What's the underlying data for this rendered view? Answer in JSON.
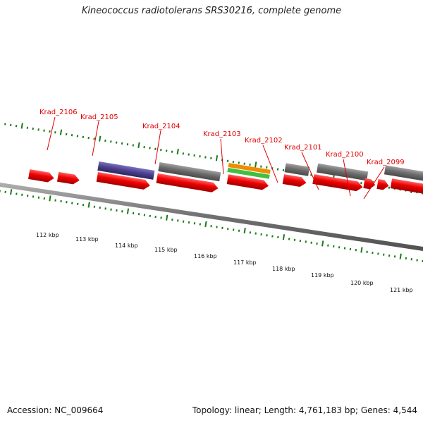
{
  "title": "Kineococcus radiotolerans SRS30216, complete genome",
  "accession_text": "Accession: NC_009664",
  "summary_text": "Topology: linear; Length: 4,761,183 bp; Genes: 4,544",
  "colors": {
    "gene_label": "#e00000",
    "gene_cds": "#e00000",
    "tick": "#1a7a1a",
    "axis": "#808080",
    "feature_gray": "#707070",
    "feature_blue": "#4a3f8c",
    "feature_orange": "#f08c00",
    "feature_green": "#40c040"
  },
  "gene_labels": [
    "Krad_2106",
    "Krad_2105",
    "Krad_2104",
    "Krad_2103",
    "Krad_2102",
    "Krad_2101",
    "Krad_2100",
    "Krad_2099"
  ],
  "kbp_labels": [
    "112 kbp",
    "113 kbp",
    "114 kbp",
    "115 kbp",
    "116 kbp",
    "117 kbp",
    "118 kbp",
    "119 kbp",
    "120 kbp",
    "121 kbp"
  ]
}
